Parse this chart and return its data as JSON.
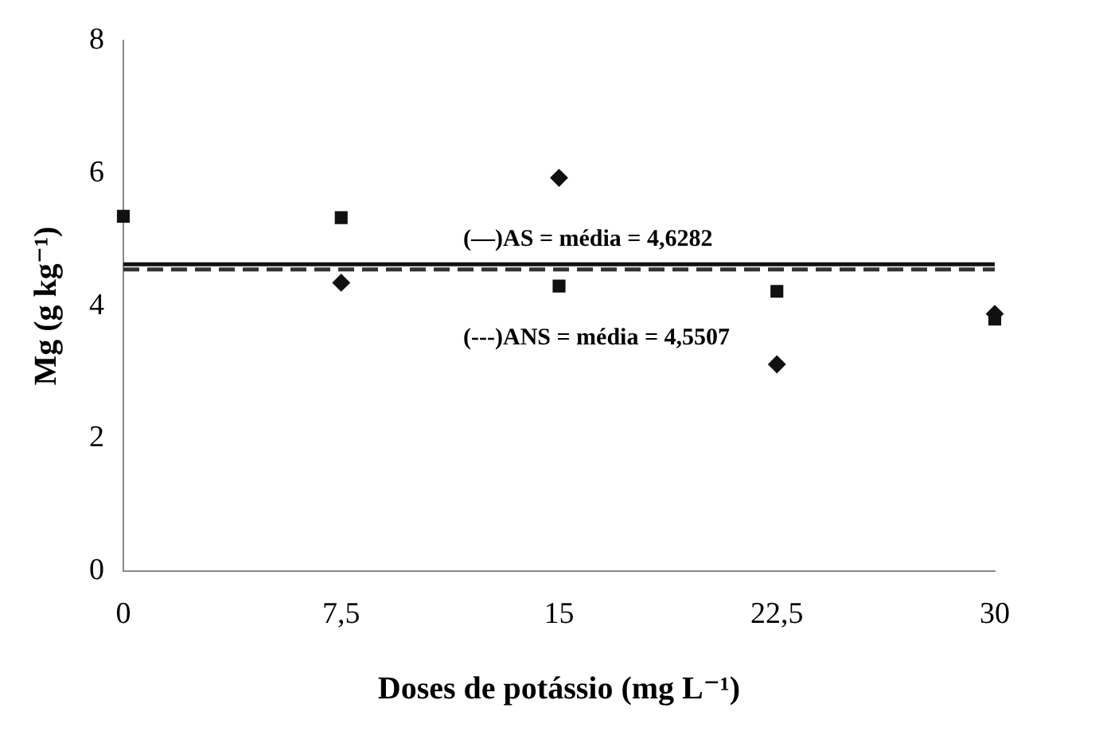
{
  "chart_data": {
    "type": "scatter",
    "xlabel": "Doses de potássio (mg L⁻¹)",
    "ylabel": "Mg (g kg⁻¹)",
    "x": [
      0,
      7.5,
      15,
      22.5,
      30
    ],
    "series": [
      {
        "color": "#111111",
        "marker": "square",
        "values": [
          5.35,
          5.33,
          4.3,
          4.22,
          3.8
        ]
      },
      {
        "color": "#111111",
        "marker": "diamond",
        "values": [
          null,
          4.35,
          5.93,
          3.12,
          3.88
        ]
      }
    ],
    "ref_lines": [
      {
        "axis": "y",
        "value": 4.6282,
        "label": "(—)AS = média = 4,6282",
        "line_style": "solid",
        "color": "#111111"
      },
      {
        "axis": "y",
        "value": 4.5507,
        "label": "(---)ANS = média = 4,5507",
        "line_style": "dashed",
        "color": "#333333"
      }
    ],
    "xlim": [
      0,
      30
    ],
    "xticks": [
      0,
      {
        "value": 7.5,
        "label": "7,5"
      },
      15,
      {
        "value": 22.5,
        "label": "22,5"
      },
      30
    ],
    "ylim": [
      0,
      8
    ],
    "yticks": [
      0,
      2,
      4,
      6,
      8
    ],
    "grid": false,
    "legend": false
  }
}
